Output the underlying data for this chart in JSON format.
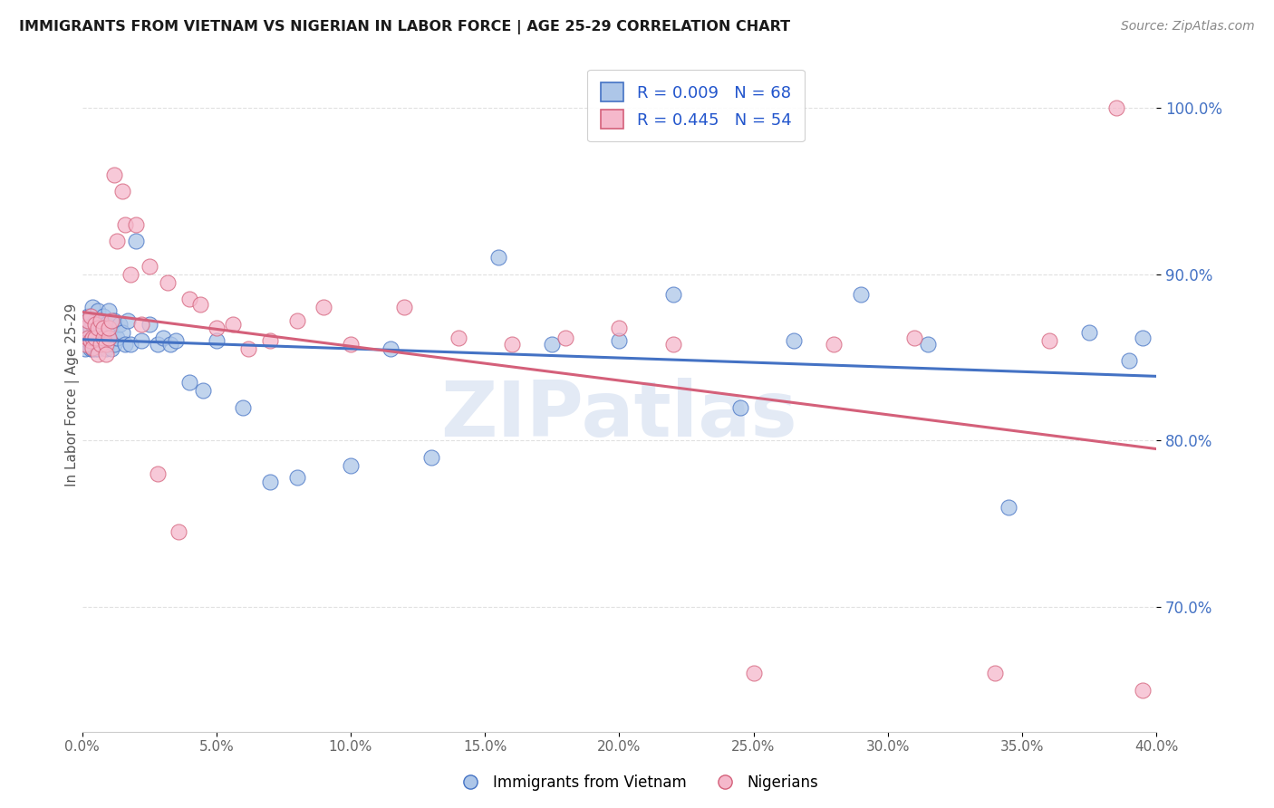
{
  "title": "IMMIGRANTS FROM VIETNAM VS NIGERIAN IN LABOR FORCE | AGE 25-29 CORRELATION CHART",
  "source": "Source: ZipAtlas.com",
  "ylabel": "In Labor Force | Age 25-29",
  "xlim": [
    0.0,
    0.4
  ],
  "ylim": [
    0.625,
    1.03
  ],
  "yticks": [
    0.7,
    0.8,
    0.9,
    1.0
  ],
  "ytick_labels": [
    "70.0%",
    "80.0%",
    "90.0%",
    "100.0%"
  ],
  "xticks": [
    0.0,
    0.05,
    0.1,
    0.15,
    0.2,
    0.25,
    0.3,
    0.35,
    0.4
  ],
  "xtick_labels": [
    "0.0%",
    "5.0%",
    "10.0%",
    "15.0%",
    "20.0%",
    "25.0%",
    "30.0%",
    "35.0%",
    "40.0%"
  ],
  "vietnam_color": "#adc6e8",
  "nigeria_color": "#f5b8cb",
  "vietnam_edge": "#4472c4",
  "nigeria_edge": "#d4607a",
  "trendline_vietnam_color": "#4472c4",
  "trendline_nigeria_color": "#d4607a",
  "legend_vietnam_R": "R = 0.009",
  "legend_vietnam_N": "N = 68",
  "legend_nigeria_R": "R = 0.445",
  "legend_nigeria_N": "N = 54",
  "vietnam_x": [
    0.001,
    0.001,
    0.002,
    0.002,
    0.002,
    0.003,
    0.003,
    0.003,
    0.003,
    0.004,
    0.004,
    0.004,
    0.004,
    0.005,
    0.005,
    0.005,
    0.006,
    0.006,
    0.006,
    0.006,
    0.007,
    0.007,
    0.007,
    0.008,
    0.008,
    0.009,
    0.009,
    0.01,
    0.01,
    0.01,
    0.011,
    0.011,
    0.012,
    0.012,
    0.013,
    0.014,
    0.015,
    0.016,
    0.017,
    0.018,
    0.02,
    0.022,
    0.025,
    0.028,
    0.03,
    0.033,
    0.035,
    0.04,
    0.045,
    0.05,
    0.06,
    0.07,
    0.08,
    0.1,
    0.115,
    0.13,
    0.155,
    0.175,
    0.2,
    0.22,
    0.245,
    0.265,
    0.29,
    0.315,
    0.345,
    0.375,
    0.39,
    0.395
  ],
  "vietnam_y": [
    0.855,
    0.87,
    0.865,
    0.875,
    0.86,
    0.875,
    0.868,
    0.86,
    0.855,
    0.87,
    0.88,
    0.862,
    0.855,
    0.872,
    0.86,
    0.855,
    0.878,
    0.865,
    0.86,
    0.855,
    0.87,
    0.862,
    0.858,
    0.875,
    0.86,
    0.87,
    0.855,
    0.878,
    0.865,
    0.86,
    0.87,
    0.855,
    0.872,
    0.858,
    0.862,
    0.87,
    0.865,
    0.858,
    0.872,
    0.858,
    0.92,
    0.86,
    0.87,
    0.858,
    0.862,
    0.858,
    0.86,
    0.835,
    0.83,
    0.86,
    0.82,
    0.775,
    0.778,
    0.785,
    0.855,
    0.79,
    0.91,
    0.858,
    0.86,
    0.888,
    0.82,
    0.86,
    0.888,
    0.858,
    0.76,
    0.865,
    0.848,
    0.862
  ],
  "nigeria_x": [
    0.001,
    0.001,
    0.002,
    0.002,
    0.003,
    0.003,
    0.004,
    0.004,
    0.005,
    0.005,
    0.006,
    0.006,
    0.007,
    0.007,
    0.008,
    0.008,
    0.009,
    0.009,
    0.01,
    0.01,
    0.011,
    0.012,
    0.013,
    0.015,
    0.016,
    0.018,
    0.02,
    0.022,
    0.025,
    0.028,
    0.032,
    0.036,
    0.04,
    0.044,
    0.05,
    0.056,
    0.062,
    0.07,
    0.08,
    0.09,
    0.1,
    0.12,
    0.14,
    0.16,
    0.18,
    0.2,
    0.22,
    0.25,
    0.28,
    0.31,
    0.34,
    0.36,
    0.385,
    0.395
  ],
  "nigeria_y": [
    0.858,
    0.868,
    0.862,
    0.872,
    0.86,
    0.875,
    0.862,
    0.856,
    0.87,
    0.862,
    0.852,
    0.868,
    0.858,
    0.872,
    0.862,
    0.868,
    0.858,
    0.852,
    0.862,
    0.868,
    0.872,
    0.96,
    0.92,
    0.95,
    0.93,
    0.9,
    0.93,
    0.87,
    0.905,
    0.78,
    0.895,
    0.745,
    0.885,
    0.882,
    0.868,
    0.87,
    0.855,
    0.86,
    0.872,
    0.88,
    0.858,
    0.88,
    0.862,
    0.858,
    0.862,
    0.868,
    0.858,
    0.66,
    0.858,
    0.862,
    0.66,
    0.86,
    1.0,
    0.65
  ],
  "background_color": "#ffffff",
  "grid_color": "#e0e0e0",
  "watermark": "ZIPatlas"
}
